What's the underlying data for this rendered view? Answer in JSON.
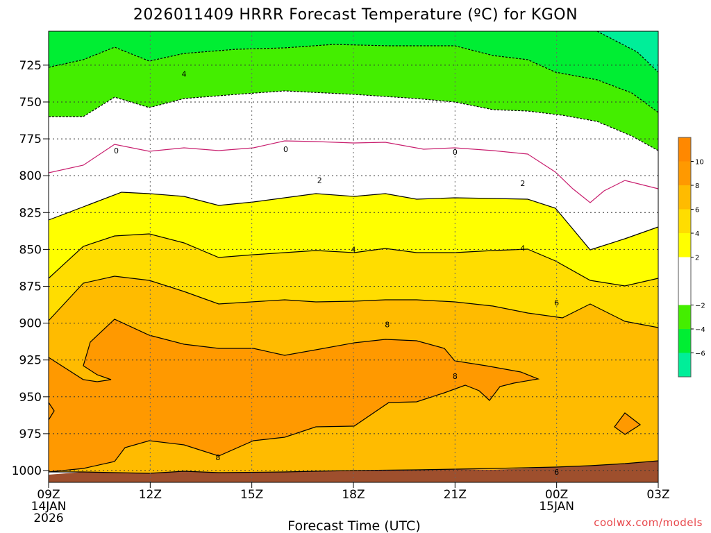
{
  "chart_data": {
    "type": "contour",
    "title": "2026011409 HRRR Forecast Temperature (ºC) for KGON",
    "xlabel": "Forecast Time (UTC)",
    "ylabel": "",
    "credit": "coolwx.com/models",
    "x_ticks": [
      {
        "hour": 0,
        "label": "09Z",
        "sub": "14JAN",
        "sub2": "2026"
      },
      {
        "hour": 3,
        "label": "12Z",
        "sub": "",
        "sub2": ""
      },
      {
        "hour": 6,
        "label": "15Z",
        "sub": "",
        "sub2": ""
      },
      {
        "hour": 9,
        "label": "18Z",
        "sub": "",
        "sub2": ""
      },
      {
        "hour": 12,
        "label": "21Z",
        "sub": "",
        "sub2": ""
      },
      {
        "hour": 15,
        "label": "00Z",
        "sub": "15JAN",
        "sub2": ""
      },
      {
        "hour": 18,
        "label": "03Z",
        "sub": "",
        "sub2": ""
      }
    ],
    "xlim": [
      0,
      18
    ],
    "y_ticks": [
      725,
      750,
      775,
      800,
      825,
      850,
      875,
      900,
      925,
      950,
      975,
      1000
    ],
    "ylim": [
      1008,
      702
    ],
    "ground_color": "#9e4f2d",
    "colorbar": {
      "bins": [
        {
          "lo": -8,
          "hi": -6,
          "color": "#00ee99"
        },
        {
          "lo": -6,
          "hi": -4,
          "color": "#00ee33"
        },
        {
          "lo": -4,
          "hi": -2,
          "color": "#44ee00"
        },
        {
          "lo": -2,
          "hi": 2,
          "color": "#ffffff"
        },
        {
          "lo": 2,
          "hi": 4,
          "color": "#ffff00"
        },
        {
          "lo": 4,
          "hi": 6,
          "color": "#ffdd00"
        },
        {
          "lo": 6,
          "hi": 8,
          "color": "#ffbb00"
        },
        {
          "lo": 8,
          "hi": 10,
          "color": "#ff9900"
        },
        {
          "lo": 10,
          "hi": 12,
          "color": "#ff8800"
        }
      ],
      "tick_labels": [
        "10",
        "8",
        "6",
        "4",
        "2",
        "−2",
        "−4",
        "−6"
      ]
    },
    "contour_labels": [
      {
        "text": "4",
        "hour": 4.0,
        "p": 731
      },
      {
        "text": "0",
        "hour": 2.0,
        "p": 783
      },
      {
        "text": "0",
        "hour": 7.0,
        "p": 782
      },
      {
        "text": "0",
        "hour": 12.0,
        "p": 784
      },
      {
        "text": "2",
        "hour": 8.0,
        "p": 803
      },
      {
        "text": "2",
        "hour": 14.0,
        "p": 805
      },
      {
        "text": "4",
        "hour": 9.0,
        "p": 850
      },
      {
        "text": "4",
        "hour": 14.0,
        "p": 849
      },
      {
        "text": "6",
        "hour": 15.0,
        "p": 886
      },
      {
        "text": "6",
        "hour": 15.0,
        "p": 1001
      },
      {
        "text": "8",
        "hour": 10.0,
        "p": 901
      },
      {
        "text": "8",
        "hour": 12.0,
        "p": 936
      },
      {
        "text": "8",
        "hour": 5.0,
        "p": 991
      }
    ]
  }
}
